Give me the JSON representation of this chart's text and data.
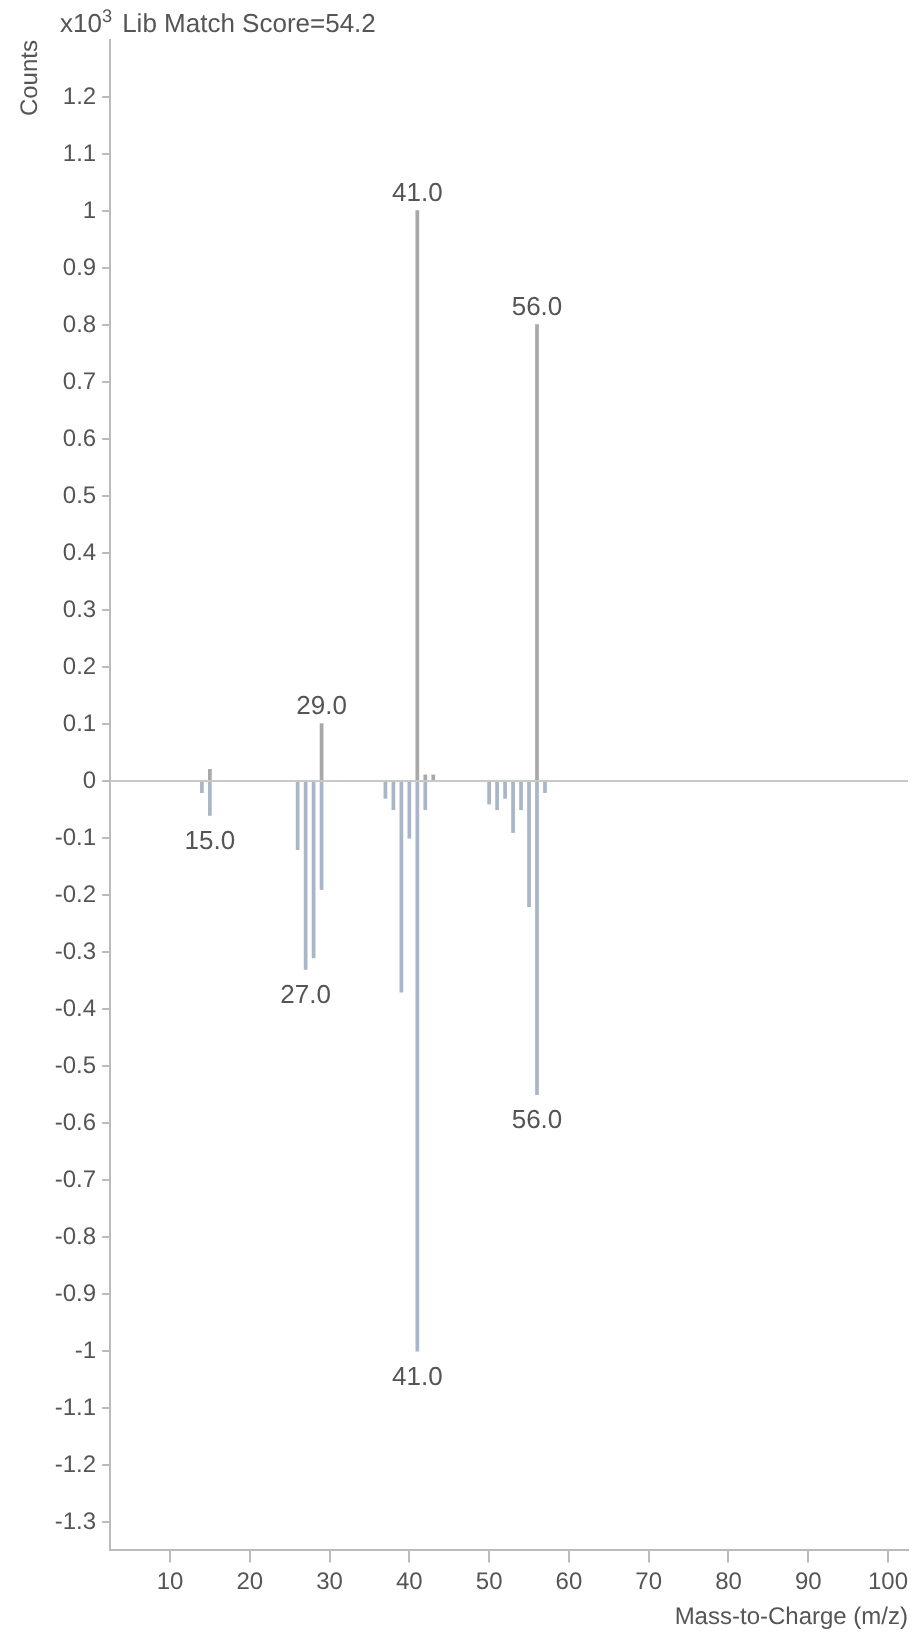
{
  "chart_data": {
    "type": "bar",
    "ylabel": "Counts",
    "xlabel": "Mass-to-Charge (m/z)",
    "series": [
      {
        "color": "#a8a8a8",
        "x": [
          15,
          29,
          41,
          42,
          43,
          56
        ],
        "values": [
          0.02,
          0.1,
          1.0,
          0.01,
          0.01,
          0.8
        ]
      },
      {
        "color": "#a9b6c8",
        "x": [
          14,
          15,
          26,
          27,
          28,
          29,
          37,
          38,
          39,
          40,
          41,
          42,
          50,
          51,
          52,
          53,
          54,
          55,
          56,
          57
        ],
        "values": [
          -0.02,
          -0.06,
          -0.12,
          -0.33,
          -0.31,
          -0.19,
          -0.03,
          -0.05,
          -0.37,
          -0.1,
          -1.0,
          -0.05,
          -0.04,
          -0.05,
          -0.03,
          -0.09,
          -0.05,
          -0.22,
          -0.55,
          -0.02
        ]
      }
    ],
    "xlim": [
      2.5,
      102.5
    ],
    "xticks": [
      10,
      20,
      30,
      40,
      50,
      60,
      70,
      80,
      90,
      100
    ],
    "ylim": [
      -1.35,
      1.3
    ],
    "yticks": [
      1.2,
      1.1,
      1,
      0.9,
      0.8,
      0.7,
      0.6,
      0.5,
      0.4,
      0.3,
      0.2,
      0.1,
      0,
      -0.1,
      -0.2,
      -0.3,
      -0.4,
      -0.5,
      -0.6,
      -0.7,
      -0.8,
      -0.9,
      -1,
      -1.1,
      -1.2,
      -1.3
    ],
    "ref_lines": [
      {
        "axis": "y",
        "value": 0,
        "color": "#c8c8c8"
      }
    ],
    "grid": false,
    "legend": false,
    "annotations": [
      "x10$^{3}$",
      "Lib Match Score=54.2",
      {
        "text": "41.0",
        "x": 41,
        "y": 1.0
      },
      {
        "text": "56.0",
        "x": 56,
        "y": 0.8
      },
      {
        "text": "29.0",
        "x": 29,
        "y": 0.1
      },
      {
        "text": "15.0",
        "x": 15,
        "y": -0.06
      },
      {
        "text": "27.0",
        "x": 27,
        "y": -0.33
      },
      {
        "text": "41.0",
        "x": 41,
        "y": -1.0
      },
      {
        "text": "56.0",
        "x": 56,
        "y": -0.55
      }
    ]
  }
}
